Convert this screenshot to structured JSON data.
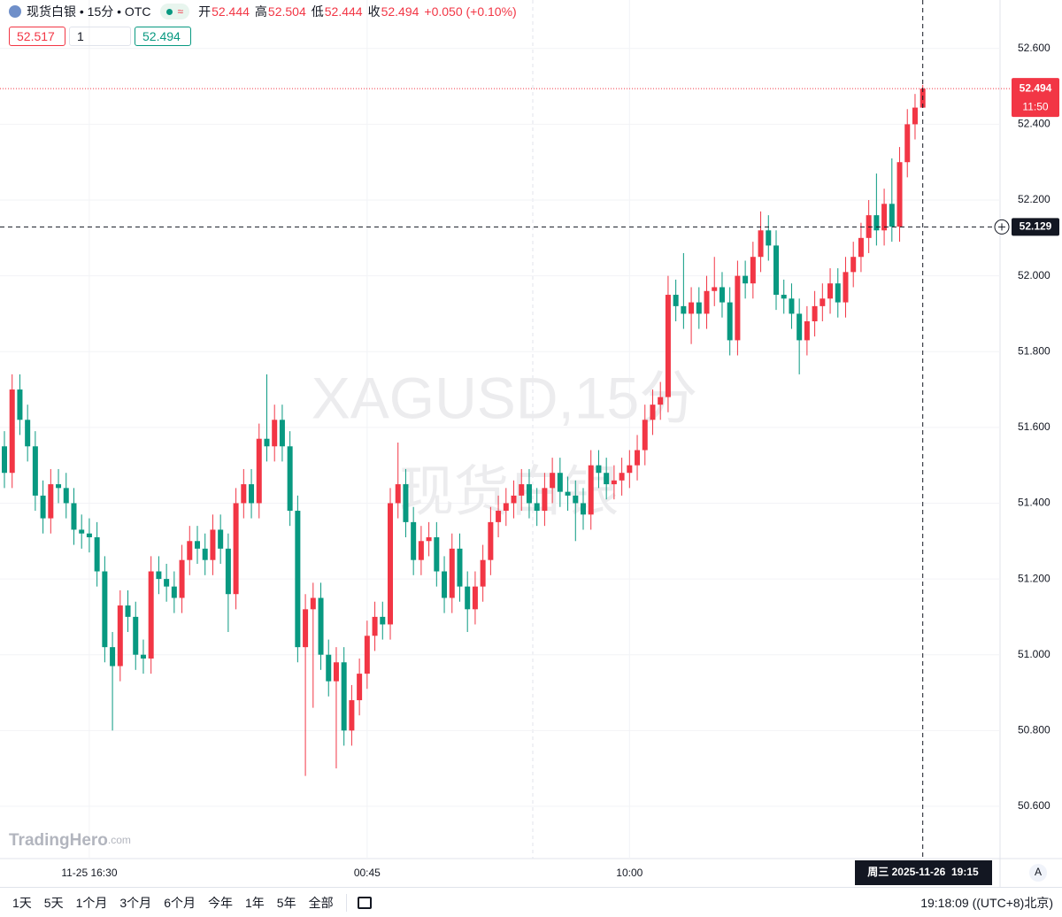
{
  "header": {
    "symbol": "现货白银 • 15分 • OTC",
    "open_label": "开",
    "high_label": "高",
    "low_label": "低",
    "close_label": "收",
    "change": "+0.050 (+0.10%)",
    "pill_icon": "≈"
  },
  "order_bar": {
    "sell": 52.517,
    "quantity": 1,
    "buy": 52.494
  },
  "watermark": {
    "line1": "XAGUSD,15分",
    "line2": "现货白银"
  },
  "logo": {
    "name": "TradingHero",
    "suffix": ".com"
  },
  "toolbar": {
    "ranges": [
      "1天",
      "5天",
      "1个月",
      "3个月",
      "6个月",
      "今年",
      "1年",
      "5年",
      "全部"
    ],
    "clock": "19:18:09 ((UTC+8)北京)",
    "auto": "A"
  },
  "chart_data": {
    "type": "candlestick",
    "up_color": "#f23645",
    "down_color": "#089981",
    "grid": true,
    "ylim": [
      50.462,
      52.728
    ],
    "yticks": [
      {
        "value": 50.6,
        "label": "50.600"
      },
      {
        "value": 50.8,
        "label": "50.800"
      },
      {
        "value": 51.0,
        "label": "51.000"
      },
      {
        "value": 51.2,
        "label": "51.200"
      },
      {
        "value": 51.4,
        "label": "51.400"
      },
      {
        "value": 51.6,
        "label": "51.600"
      },
      {
        "value": 51.8,
        "label": "51.800"
      },
      {
        "value": 52.0,
        "label": "52.000"
      },
      {
        "value": 52.2,
        "label": "52.200"
      },
      {
        "value": 52.4,
        "label": "52.400"
      },
      {
        "value": 52.6,
        "label": "52.600"
      }
    ],
    "categories": [
      null,
      null,
      null,
      null,
      null,
      null,
      null,
      null,
      null,
      null,
      null,
      "11-25 16:30",
      null,
      null,
      null,
      null,
      null,
      null,
      null,
      null,
      null,
      null,
      null,
      null,
      null,
      null,
      null,
      null,
      null,
      null,
      null,
      null,
      null,
      null,
      null,
      null,
      null,
      null,
      null,
      null,
      null,
      null,
      null,
      null,
      null,
      null,
      null,
      "00:45",
      null,
      null,
      null,
      null,
      null,
      null,
      null,
      null,
      null,
      null,
      null,
      null,
      null,
      null,
      null,
      null,
      null,
      null,
      null,
      null,
      null,
      null,
      null,
      null,
      null,
      null,
      null,
      null,
      null,
      null,
      null,
      null,
      null,
      "10:00",
      null,
      null,
      null,
      null,
      null,
      null,
      null,
      null,
      null,
      null,
      null,
      null,
      null,
      null,
      null,
      null,
      null,
      null,
      null,
      null,
      null,
      null,
      null,
      null,
      null,
      null,
      null,
      null,
      null,
      null,
      null,
      null,
      null,
      null,
      null,
      null,
      null,
      null
    ],
    "open": [
      51.55,
      51.48,
      51.7,
      51.62,
      51.55,
      51.42,
      51.36,
      51.45,
      51.44,
      51.4,
      51.33,
      51.32,
      51.31,
      51.22,
      51.02,
      50.97,
      51.13,
      51.1,
      51.0,
      50.99,
      51.22,
      51.2,
      51.18,
      51.15,
      51.25,
      51.3,
      51.28,
      51.25,
      51.33,
      51.28,
      51.16,
      51.4,
      51.45,
      51.4,
      51.57,
      51.55,
      51.62,
      51.55,
      51.38,
      51.02,
      51.12,
      51.15,
      51.0,
      50.93,
      50.98,
      50.8,
      50.88,
      50.95,
      51.05,
      51.1,
      51.08,
      51.4,
      51.45,
      51.35,
      51.25,
      51.3,
      51.31,
      51.22,
      51.15,
      51.28,
      51.18,
      51.12,
      51.18,
      51.25,
      51.35,
      51.38,
      51.4,
      51.42,
      51.45,
      51.4,
      51.38,
      51.44,
      51.48,
      51.43,
      51.42,
      51.4,
      51.37,
      51.5,
      51.48,
      51.45,
      51.46,
      51.48,
      51.5,
      51.54,
      51.62,
      51.66,
      51.68,
      51.95,
      51.92,
      51.9,
      51.93,
      51.9,
      51.96,
      51.97,
      51.93,
      51.83,
      52.0,
      51.98,
      52.05,
      52.12,
      52.08,
      51.95,
      51.94,
      51.9,
      51.83,
      51.88,
      51.92,
      51.94,
      51.98,
      51.93,
      52.01,
      52.05,
      52.1,
      52.16,
      52.12,
      52.19,
      52.13,
      52.3,
      52.4,
      52.444
    ],
    "high": [
      51.59,
      51.74,
      51.74,
      51.66,
      51.59,
      51.46,
      51.49,
      51.49,
      51.48,
      51.44,
      51.37,
      51.36,
      51.35,
      51.26,
      51.06,
      51.17,
      51.17,
      51.14,
      51.04,
      51.26,
      51.26,
      51.24,
      51.22,
      51.29,
      51.34,
      51.34,
      51.32,
      51.37,
      51.37,
      51.32,
      51.44,
      51.49,
      51.49,
      51.61,
      51.74,
      51.66,
      51.66,
      51.59,
      51.42,
      51.16,
      51.19,
      51.19,
      51.04,
      51.02,
      51.02,
      50.92,
      50.99,
      51.09,
      51.14,
      51.14,
      51.44,
      51.56,
      51.49,
      51.39,
      51.34,
      51.35,
      51.35,
      51.26,
      51.32,
      51.32,
      51.22,
      51.22,
      51.29,
      51.39,
      51.42,
      51.44,
      51.46,
      51.49,
      51.49,
      51.44,
      51.48,
      51.52,
      51.52,
      51.47,
      51.46,
      51.44,
      51.54,
      51.54,
      51.52,
      51.5,
      51.52,
      51.54,
      51.58,
      51.66,
      51.7,
      51.72,
      52.0,
      51.99,
      52.06,
      51.97,
      51.97,
      52.0,
      52.05,
      52.01,
      51.97,
      52.04,
      52.04,
      52.09,
      52.17,
      52.16,
      52.12,
      51.99,
      51.98,
      51.94,
      51.92,
      51.96,
      51.98,
      52.02,
      52.02,
      52.05,
      52.09,
      52.14,
      52.2,
      52.27,
      52.23,
      52.31,
      52.34,
      52.44,
      52.48,
      52.504
    ],
    "low": [
      51.44,
      51.44,
      51.58,
      51.51,
      51.38,
      51.32,
      51.32,
      51.4,
      51.36,
      51.29,
      51.28,
      51.27,
      51.18,
      50.98,
      50.8,
      50.93,
      51.06,
      50.96,
      50.95,
      50.95,
      51.16,
      51.14,
      51.11,
      51.11,
      51.21,
      51.24,
      51.21,
      51.21,
      51.24,
      51.06,
      51.12,
      51.36,
      51.36,
      51.36,
      51.51,
      51.51,
      51.51,
      51.34,
      50.98,
      50.68,
      50.86,
      50.96,
      50.89,
      50.7,
      50.76,
      50.76,
      50.84,
      50.91,
      51.01,
      51.04,
      51.04,
      51.36,
      51.31,
      51.21,
      51.21,
      51.26,
      51.18,
      51.11,
      51.11,
      51.14,
      51.06,
      51.08,
      51.14,
      51.21,
      51.31,
      51.34,
      51.36,
      51.38,
      51.36,
      51.34,
      51.34,
      51.4,
      51.39,
      51.38,
      51.3,
      51.33,
      51.33,
      51.44,
      51.41,
      51.41,
      51.42,
      51.44,
      51.46,
      51.5,
      51.58,
      51.62,
      51.64,
      51.88,
      51.86,
      51.82,
      51.86,
      51.86,
      51.92,
      51.89,
      51.79,
      51.79,
      51.94,
      51.94,
      52.01,
      52.04,
      51.91,
      51.9,
      51.86,
      51.74,
      51.79,
      51.84,
      51.88,
      51.9,
      51.89,
      51.89,
      51.97,
      52.01,
      52.06,
      52.08,
      52.08,
      52.09,
      52.09,
      52.26,
      52.36,
      52.444
    ],
    "close": [
      51.48,
      51.7,
      51.62,
      51.55,
      51.42,
      51.36,
      51.45,
      51.44,
      51.4,
      51.33,
      51.32,
      51.31,
      51.22,
      51.02,
      50.97,
      51.13,
      51.1,
      51.0,
      50.99,
      51.22,
      51.2,
      51.18,
      51.15,
      51.25,
      51.3,
      51.28,
      51.25,
      51.33,
      51.28,
      51.16,
      51.4,
      51.45,
      51.4,
      51.57,
      51.55,
      51.62,
      51.55,
      51.38,
      51.02,
      51.12,
      51.15,
      51.0,
      50.93,
      50.98,
      50.8,
      50.88,
      50.95,
      51.05,
      51.1,
      51.08,
      51.4,
      51.45,
      51.35,
      51.25,
      51.3,
      51.31,
      51.22,
      51.15,
      51.28,
      51.18,
      51.12,
      51.18,
      51.25,
      51.35,
      51.38,
      51.4,
      51.42,
      51.45,
      51.4,
      51.38,
      51.44,
      51.48,
      51.43,
      51.42,
      51.4,
      51.37,
      51.5,
      51.48,
      51.45,
      51.46,
      51.48,
      51.5,
      51.54,
      51.62,
      51.66,
      51.68,
      51.95,
      51.92,
      51.9,
      51.93,
      51.9,
      51.96,
      51.97,
      51.93,
      51.83,
      52.0,
      51.98,
      52.05,
      52.12,
      52.08,
      51.95,
      51.94,
      51.9,
      51.83,
      51.88,
      51.92,
      51.94,
      51.98,
      51.93,
      52.01,
      52.05,
      52.1,
      52.16,
      52.12,
      52.19,
      52.13,
      52.3,
      52.4,
      52.444,
      52.494
    ],
    "countdown": "11:50",
    "crosshair": {
      "price": 52.129,
      "time": "周三 2025-11-26  19:15"
    }
  }
}
